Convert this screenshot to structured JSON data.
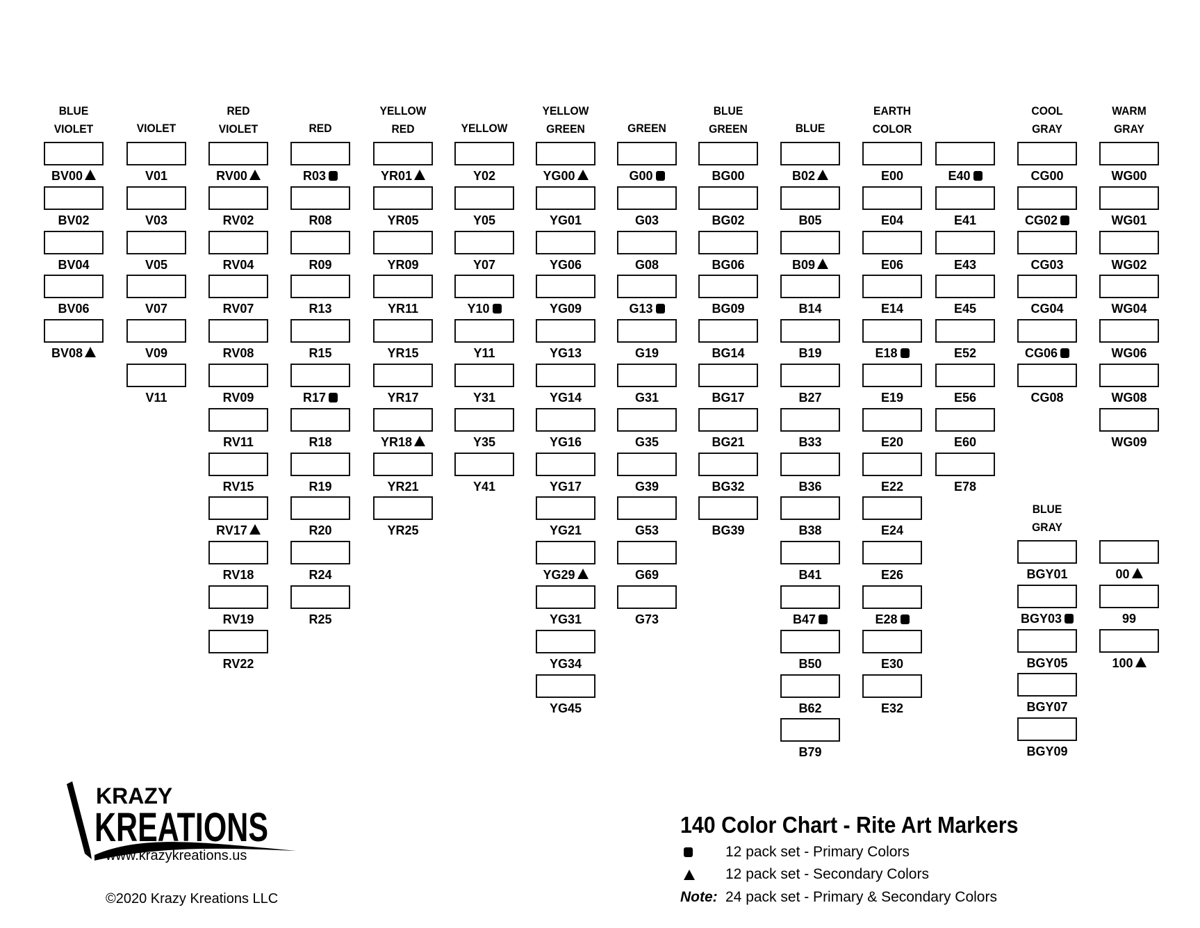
{
  "columns": [
    {
      "header": [
        "BLUE",
        "VIOLET"
      ],
      "items": [
        [
          "BV00",
          "tri"
        ],
        [
          "BV02"
        ],
        [
          "BV04"
        ],
        [
          "BV06"
        ],
        [
          "BV08",
          "tri"
        ]
      ]
    },
    {
      "header": [
        "VIOLET"
      ],
      "items": [
        [
          "V01"
        ],
        [
          "V03"
        ],
        [
          "V05"
        ],
        [
          "V07"
        ],
        [
          "V09"
        ],
        [
          "V11"
        ]
      ]
    },
    {
      "header": [
        "RED",
        "VIOLET"
      ],
      "items": [
        [
          "RV00",
          "tri"
        ],
        [
          "RV02"
        ],
        [
          "RV04"
        ],
        [
          "RV07"
        ],
        [
          "RV08"
        ],
        [
          "RV09"
        ],
        [
          "RV11"
        ],
        [
          "RV15"
        ],
        [
          "RV17",
          "tri"
        ],
        [
          "RV18"
        ],
        [
          "RV19"
        ],
        [
          "RV22"
        ]
      ]
    },
    {
      "header": [
        "RED"
      ],
      "items": [
        [
          "R03",
          "sq"
        ],
        [
          "R08"
        ],
        [
          "R09"
        ],
        [
          "R13"
        ],
        [
          "R15"
        ],
        [
          "R17",
          "sq"
        ],
        [
          "R18"
        ],
        [
          "R19"
        ],
        [
          "R20"
        ],
        [
          "R24"
        ],
        [
          "R25"
        ]
      ]
    },
    {
      "header": [
        "YELLOW",
        "RED"
      ],
      "items": [
        [
          "YR01",
          "tri"
        ],
        [
          "YR05"
        ],
        [
          "YR09"
        ],
        [
          "YR11"
        ],
        [
          "YR15"
        ],
        [
          "YR17"
        ],
        [
          "YR18",
          "tri"
        ],
        [
          "YR21"
        ],
        [
          "YR25"
        ]
      ]
    },
    {
      "header": [
        "YELLOW"
      ],
      "items": [
        [
          "Y02"
        ],
        [
          "Y05"
        ],
        [
          "Y07"
        ],
        [
          "Y10",
          "sq"
        ],
        [
          "Y11"
        ],
        [
          "Y31"
        ],
        [
          "Y35"
        ],
        [
          "Y41"
        ]
      ]
    },
    {
      "header": [
        "YELLOW",
        "GREEN"
      ],
      "items": [
        [
          "YG00",
          "tri"
        ],
        [
          "YG01"
        ],
        [
          "YG06"
        ],
        [
          "YG09"
        ],
        [
          "YG13"
        ],
        [
          "YG14"
        ],
        [
          "YG16"
        ],
        [
          "YG17"
        ],
        [
          "YG21"
        ],
        [
          "YG29",
          "tri"
        ],
        [
          "YG31"
        ],
        [
          "YG34"
        ],
        [
          "YG45"
        ]
      ]
    },
    {
      "header": [
        "GREEN"
      ],
      "items": [
        [
          "G00",
          "sq"
        ],
        [
          "G03"
        ],
        [
          "G08"
        ],
        [
          "G13",
          "sq"
        ],
        [
          "G19"
        ],
        [
          "G31"
        ],
        [
          "G35"
        ],
        [
          "G39"
        ],
        [
          "G53"
        ],
        [
          "G69"
        ],
        [
          "G73"
        ]
      ]
    },
    {
      "header": [
        "BLUE",
        "GREEN"
      ],
      "items": [
        [
          "BG00"
        ],
        [
          "BG02"
        ],
        [
          "BG06"
        ],
        [
          "BG09"
        ],
        [
          "BG14"
        ],
        [
          "BG17"
        ],
        [
          "BG21"
        ],
        [
          "BG32"
        ],
        [
          "BG39"
        ]
      ]
    },
    {
      "header": [
        "BLUE"
      ],
      "items": [
        [
          "B02",
          "tri"
        ],
        [
          "B05"
        ],
        [
          "B09",
          "tri"
        ],
        [
          "B14"
        ],
        [
          "B19"
        ],
        [
          "B27"
        ],
        [
          "B33"
        ],
        [
          "B36"
        ],
        [
          "B38"
        ],
        [
          "B41"
        ],
        [
          "B47",
          "sq"
        ],
        [
          "B50"
        ],
        [
          "B62"
        ],
        [
          "B79"
        ]
      ]
    },
    {
      "header": [
        "EARTH",
        "COLOR"
      ],
      "items": [
        [
          "E00"
        ],
        [
          "E04"
        ],
        [
          "E06"
        ],
        [
          "E14"
        ],
        [
          "E18",
          "sq"
        ],
        [
          "E19"
        ],
        [
          "E20"
        ],
        [
          "E22"
        ],
        [
          "E24"
        ],
        [
          "E26"
        ],
        [
          "E28",
          "sq"
        ],
        [
          "E30"
        ],
        [
          "E32"
        ]
      ]
    },
    {
      "header": [],
      "items": [
        [
          "E40",
          "sq"
        ],
        [
          "E41"
        ],
        [
          "E43"
        ],
        [
          "E45"
        ],
        [
          "E52"
        ],
        [
          "E56"
        ],
        [
          "E60"
        ],
        [
          "E78"
        ]
      ]
    },
    {
      "header": [
        "COOL",
        "GRAY"
      ],
      "items": [
        [
          "CG00"
        ],
        [
          "CG02",
          "sq"
        ],
        [
          "CG03"
        ],
        [
          "CG04"
        ],
        [
          "CG06",
          "sq"
        ],
        [
          "CG08"
        ]
      ]
    },
    {
      "header": [
        "WARM",
        "GRAY"
      ],
      "items": [
        [
          "WG00"
        ],
        [
          "WG01"
        ],
        [
          "WG02"
        ],
        [
          "WG04"
        ],
        [
          "WG06"
        ],
        [
          "WG08"
        ],
        [
          "WG09"
        ]
      ]
    },
    {
      "header": [
        "BLUE",
        "GRAY"
      ],
      "items": [
        [
          "BGY01"
        ],
        [
          "BGY03",
          "sq"
        ],
        [
          "BGY05"
        ],
        [
          "BGY07"
        ],
        [
          "BGY09"
        ]
      ]
    },
    {
      "header": [],
      "items": [
        [
          "00",
          "tri"
        ],
        [
          "99"
        ],
        [
          "100",
          "tri"
        ]
      ]
    }
  ],
  "logo": {
    "line1": "KRAZY",
    "line2": "KREATIONS",
    "url": "www.krazykreations.us"
  },
  "copyright": "©2020 Krazy Kreations LLC",
  "title": "140 Color Chart - Rite Art Markers",
  "legend": [
    {
      "icon": "square",
      "text": "12 pack set - Primary Colors"
    },
    {
      "icon": "triangle",
      "text": "12 pack set - Secondary Colors"
    }
  ],
  "note": {
    "label": "Note:",
    "text": "24 pack set - Primary & Secondary Colors"
  }
}
